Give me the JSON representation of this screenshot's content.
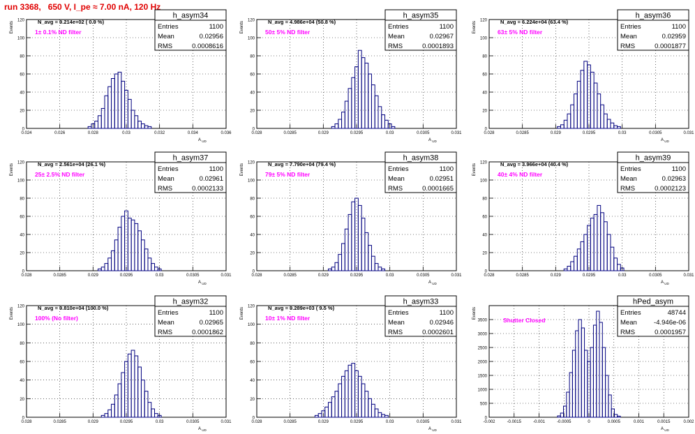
{
  "run_title": "run 3368,   650 V, I_pe ≈ 7.00 nA, 120 Hz",
  "colors": {
    "histogram": "#00007f",
    "annotation": "#ff00ff",
    "title": "#e00000",
    "grid": "#000000"
  },
  "stats_labels": {
    "entries": "Entries",
    "mean": "Mean",
    "rms": "RMS"
  },
  "chart_data": [
    {
      "type": "bar",
      "name": "h_asym34",
      "navg": "N_avg = 9.214e+02 ( 0.9 %)",
      "filter": "1± 0.1% ND filter",
      "stats": {
        "entries": "1100",
        "mean": "0.02956",
        "rms": "0.0008616"
      },
      "xlabel": "A_UD",
      "ylabel": "Events",
      "xlim": [
        0.024,
        0.036
      ],
      "ylim": [
        0,
        120
      ],
      "xticks": [
        0.024,
        0.026,
        0.028,
        0.03,
        0.032,
        0.034,
        0.036
      ],
      "xtick_labels": [
        "0.024",
        "0.026",
        "0.028",
        "0.03",
        "0.032",
        "0.034",
        "0.036"
      ],
      "yticks": [
        0,
        20,
        40,
        60,
        80,
        100,
        120
      ],
      "ytick_labels": [
        "0",
        "20",
        "40",
        "60",
        "80",
        "100",
        "120"
      ],
      "grid": true,
      "bins": [
        [
          0.0278,
          2
        ],
        [
          0.028,
          5
        ],
        [
          0.0282,
          8
        ],
        [
          0.0284,
          14
        ],
        [
          0.0286,
          22
        ],
        [
          0.0288,
          36
        ],
        [
          0.029,
          46
        ],
        [
          0.0292,
          55
        ],
        [
          0.0294,
          60
        ],
        [
          0.0296,
          62
        ],
        [
          0.0298,
          52
        ],
        [
          0.03,
          42
        ],
        [
          0.0302,
          32
        ],
        [
          0.0304,
          20
        ],
        [
          0.0306,
          14
        ],
        [
          0.0308,
          8
        ],
        [
          0.031,
          5
        ],
        [
          0.0312,
          3
        ],
        [
          0.0314,
          2
        ]
      ]
    },
    {
      "type": "bar",
      "name": "h_asym35",
      "navg": "N_avg = 4.986e+04 (50.8 %)",
      "filter": "50± 5% ND filter",
      "stats": {
        "entries": "1100",
        "mean": "0.02967",
        "rms": "0.0001893"
      },
      "xlabel": "A_UD",
      "ylabel": "Events",
      "xlim": [
        0.028,
        0.031
      ],
      "ylim": [
        0,
        120
      ],
      "xticks": [
        0.028,
        0.0285,
        0.029,
        0.0295,
        0.03,
        0.0305,
        0.031
      ],
      "xtick_labels": [
        "0.028",
        "0.0285",
        "0.029",
        "0.0295",
        "0.03",
        "0.0305",
        "0.031"
      ],
      "yticks": [
        0,
        20,
        40,
        60,
        80,
        100,
        120
      ],
      "ytick_labels": [
        "0",
        "20",
        "40",
        "60",
        "80",
        "100",
        "120"
      ],
      "grid": true,
      "bins": [
        [
          0.02915,
          2
        ],
        [
          0.0292,
          5
        ],
        [
          0.02925,
          10
        ],
        [
          0.0293,
          18
        ],
        [
          0.02935,
          30
        ],
        [
          0.0294,
          44
        ],
        [
          0.02945,
          56
        ],
        [
          0.0295,
          68
        ],
        [
          0.02955,
          86
        ],
        [
          0.0296,
          78
        ],
        [
          0.02965,
          72
        ],
        [
          0.0297,
          60
        ],
        [
          0.02975,
          48
        ],
        [
          0.0298,
          36
        ],
        [
          0.02985,
          24
        ],
        [
          0.0299,
          15
        ],
        [
          0.02995,
          9
        ],
        [
          0.03,
          5
        ],
        [
          0.03005,
          2
        ]
      ]
    },
    {
      "type": "bar",
      "name": "h_asym36",
      "navg": "N_avg = 6.224e+04 (63.4 %)",
      "filter": "63± 5% ND filter",
      "stats": {
        "entries": "1100",
        "mean": "0.02959",
        "rms": "0.0001877"
      },
      "xlabel": "A_UD",
      "ylabel": "Events",
      "xlim": [
        0.028,
        0.031
      ],
      "ylim": [
        0,
        120
      ],
      "xticks": [
        0.028,
        0.0285,
        0.029,
        0.0295,
        0.03,
        0.0305,
        0.031
      ],
      "xtick_labels": [
        "0.028",
        "0.0285",
        "0.029",
        "0.0295",
        "0.03",
        "0.0305",
        "0.031"
      ],
      "yticks": [
        0,
        20,
        40,
        60,
        80,
        100,
        120
      ],
      "ytick_labels": [
        "0",
        "20",
        "40",
        "60",
        "80",
        "100",
        "120"
      ],
      "grid": true,
      "bins": [
        [
          0.02905,
          2
        ],
        [
          0.0291,
          4
        ],
        [
          0.02915,
          9
        ],
        [
          0.0292,
          16
        ],
        [
          0.02925,
          26
        ],
        [
          0.0293,
          38
        ],
        [
          0.02935,
          52
        ],
        [
          0.0294,
          64
        ],
        [
          0.02945,
          74
        ],
        [
          0.0295,
          70
        ],
        [
          0.02955,
          62
        ],
        [
          0.0296,
          50
        ],
        [
          0.02965,
          38
        ],
        [
          0.0297,
          26
        ],
        [
          0.02975,
          16
        ],
        [
          0.0298,
          10
        ],
        [
          0.02985,
          6
        ],
        [
          0.0299,
          3
        ],
        [
          0.02995,
          2
        ]
      ]
    },
    {
      "type": "bar",
      "name": "h_asym37",
      "navg": "N_avg = 2.561e+04 (26.1 %)",
      "filter": "25± 2.5% ND filter",
      "stats": {
        "entries": "1100",
        "mean": "0.02961",
        "rms": "0.0002133"
      },
      "xlabel": "A_UD",
      "ylabel": "Events",
      "xlim": [
        0.028,
        0.031
      ],
      "ylim": [
        0,
        120
      ],
      "xticks": [
        0.028,
        0.0285,
        0.029,
        0.0295,
        0.03,
        0.0305,
        0.031
      ],
      "xtick_labels": [
        "0.028",
        "0.0285",
        "0.029",
        "0.0295",
        "0.03",
        "0.0305",
        "0.031"
      ],
      "yticks": [
        0,
        20,
        40,
        60,
        80,
        100,
        120
      ],
      "ytick_labels": [
        "0",
        "20",
        "40",
        "60",
        "80",
        "100",
        "120"
      ],
      "grid": true,
      "bins": [
        [
          0.0291,
          2
        ],
        [
          0.02915,
          4
        ],
        [
          0.0292,
          8
        ],
        [
          0.02925,
          14
        ],
        [
          0.0293,
          22
        ],
        [
          0.02935,
          34
        ],
        [
          0.0294,
          48
        ],
        [
          0.02945,
          60
        ],
        [
          0.0295,
          66
        ],
        [
          0.02955,
          58
        ],
        [
          0.0296,
          56
        ],
        [
          0.02965,
          52
        ],
        [
          0.0297,
          44
        ],
        [
          0.02975,
          34
        ],
        [
          0.0298,
          24
        ],
        [
          0.02985,
          14
        ],
        [
          0.0299,
          8
        ],
        [
          0.02995,
          4
        ],
        [
          0.03,
          2
        ]
      ]
    },
    {
      "type": "bar",
      "name": "h_asym38",
      "navg": "N_avg = 7.790e+04 (79.4 %)",
      "filter": "79± 5% ND filter",
      "stats": {
        "entries": "1100",
        "mean": "0.02951",
        "rms": "0.0001665"
      },
      "xlabel": "A_UD",
      "ylabel": "Events",
      "xlim": [
        0.028,
        0.031
      ],
      "ylim": [
        0,
        120
      ],
      "xticks": [
        0.028,
        0.0285,
        0.029,
        0.0295,
        0.03,
        0.0305,
        0.031
      ],
      "xtick_labels": [
        "0.028",
        "0.0285",
        "0.029",
        "0.0295",
        "0.03",
        "0.0305",
        "0.031"
      ],
      "yticks": [
        0,
        20,
        40,
        60,
        80,
        100,
        120
      ],
      "ytick_labels": [
        "0",
        "20",
        "40",
        "60",
        "80",
        "100",
        "120"
      ],
      "grid": true,
      "bins": [
        [
          0.0291,
          2
        ],
        [
          0.02915,
          4
        ],
        [
          0.0292,
          9
        ],
        [
          0.02925,
          18
        ],
        [
          0.0293,
          30
        ],
        [
          0.02935,
          46
        ],
        [
          0.0294,
          62
        ],
        [
          0.02945,
          76
        ],
        [
          0.0295,
          80
        ],
        [
          0.02955,
          72
        ],
        [
          0.0296,
          58
        ],
        [
          0.02965,
          42
        ],
        [
          0.0297,
          28
        ],
        [
          0.02975,
          16
        ],
        [
          0.0298,
          8
        ],
        [
          0.02985,
          4
        ],
        [
          0.0299,
          2
        ]
      ]
    },
    {
      "type": "bar",
      "name": "h_asym39",
      "navg": "N_avg = 3.966e+04 (40.4 %)",
      "filter": "40± 4% ND filter",
      "stats": {
        "entries": "1100",
        "mean": "0.02963",
        "rms": "0.0002123"
      },
      "xlabel": "A_UD",
      "ylabel": "Events",
      "xlim": [
        0.028,
        0.031
      ],
      "ylim": [
        0,
        120
      ],
      "xticks": [
        0.028,
        0.0285,
        0.029,
        0.0295,
        0.03,
        0.0305,
        0.031
      ],
      "xtick_labels": [
        "0.028",
        "0.0285",
        "0.029",
        "0.0295",
        "0.03",
        "0.0305",
        "0.031"
      ],
      "yticks": [
        0,
        20,
        40,
        60,
        80,
        100,
        120
      ],
      "ytick_labels": [
        "0",
        "20",
        "40",
        "60",
        "80",
        "100",
        "120"
      ],
      "grid": true,
      "bins": [
        [
          0.02915,
          2
        ],
        [
          0.0292,
          5
        ],
        [
          0.02925,
          10
        ],
        [
          0.0293,
          16
        ],
        [
          0.02935,
          24
        ],
        [
          0.0294,
          32
        ],
        [
          0.02945,
          40
        ],
        [
          0.0295,
          50
        ],
        [
          0.02955,
          58
        ],
        [
          0.0296,
          62
        ],
        [
          0.02965,
          72
        ],
        [
          0.0297,
          64
        ],
        [
          0.02975,
          54
        ],
        [
          0.0298,
          40
        ],
        [
          0.02985,
          26
        ],
        [
          0.0299,
          14
        ],
        [
          0.02995,
          7
        ],
        [
          0.03,
          3
        ]
      ]
    },
    {
      "type": "bar",
      "name": "h_asym32",
      "navg": "N_avg = 9.810e+04 (100.0 %)",
      "filter": "100% (No filter)",
      "stats": {
        "entries": "1100",
        "mean": "0.02965",
        "rms": "0.0001862"
      },
      "xlabel": "A_UD",
      "ylabel": "Events",
      "xlim": [
        0.028,
        0.031
      ],
      "ylim": [
        0,
        120
      ],
      "xticks": [
        0.028,
        0.0285,
        0.029,
        0.0295,
        0.03,
        0.0305,
        0.031
      ],
      "xtick_labels": [
        "0.028",
        "0.0285",
        "0.029",
        "0.0295",
        "0.03",
        "0.0305",
        "0.031"
      ],
      "yticks": [
        0,
        20,
        40,
        60,
        80,
        100,
        120
      ],
      "ytick_labels": [
        "0",
        "20",
        "40",
        "60",
        "80",
        "100",
        "120"
      ],
      "grid": true,
      "bins": [
        [
          0.02915,
          2
        ],
        [
          0.0292,
          4
        ],
        [
          0.02925,
          8
        ],
        [
          0.0293,
          14
        ],
        [
          0.02935,
          24
        ],
        [
          0.0294,
          36
        ],
        [
          0.02945,
          48
        ],
        [
          0.0295,
          60
        ],
        [
          0.02955,
          68
        ],
        [
          0.0296,
          72
        ],
        [
          0.02965,
          66
        ],
        [
          0.0297,
          54
        ],
        [
          0.02975,
          40
        ],
        [
          0.0298,
          28
        ],
        [
          0.02985,
          16
        ],
        [
          0.0299,
          9
        ],
        [
          0.02995,
          4
        ],
        [
          0.03,
          2
        ]
      ]
    },
    {
      "type": "bar",
      "name": "h_asym33",
      "navg": "N_avg = 9.289e+03 ( 9.5 %)",
      "filter": "10± 1% ND filter",
      "stats": {
        "entries": "1100",
        "mean": "0.02946",
        "rms": "0.0002601"
      },
      "xlabel": "A_UD",
      "ylabel": "Events",
      "xlim": [
        0.028,
        0.031
      ],
      "ylim": [
        0,
        120
      ],
      "xticks": [
        0.028,
        0.0285,
        0.029,
        0.0295,
        0.03,
        0.0305,
        0.031
      ],
      "xtick_labels": [
        "0.028",
        "0.0285",
        "0.029",
        "0.0295",
        "0.03",
        "0.0305",
        "0.031"
      ],
      "yticks": [
        0,
        20,
        40,
        60,
        80,
        100,
        120
      ],
      "ytick_labels": [
        "0",
        "20",
        "40",
        "60",
        "80",
        "100",
        "120"
      ],
      "grid": true,
      "bins": [
        [
          0.0289,
          2
        ],
        [
          0.02895,
          4
        ],
        [
          0.029,
          7
        ],
        [
          0.02905,
          11
        ],
        [
          0.0291,
          16
        ],
        [
          0.02915,
          22
        ],
        [
          0.0292,
          28
        ],
        [
          0.02925,
          36
        ],
        [
          0.0293,
          44
        ],
        [
          0.02935,
          50
        ],
        [
          0.0294,
          56
        ],
        [
          0.02945,
          58
        ],
        [
          0.0295,
          50
        ],
        [
          0.02955,
          44
        ],
        [
          0.0296,
          36
        ],
        [
          0.02965,
          28
        ],
        [
          0.0297,
          20
        ],
        [
          0.02975,
          14
        ],
        [
          0.0298,
          9
        ],
        [
          0.02985,
          5
        ],
        [
          0.0299,
          3
        ],
        [
          0.02995,
          2
        ]
      ]
    },
    {
      "type": "bar",
      "name": "hPed_asym",
      "navg": "",
      "filter": "Shutter Closed",
      "stats": {
        "entries": "48744",
        "mean": "-4.946e-06",
        "rms": "0.0001957"
      },
      "xlabel": "A_UD",
      "ylabel": "Events",
      "xlim": [
        -0.002,
        0.002
      ],
      "ylim": [
        0,
        4000
      ],
      "xticks": [
        -0.002,
        -0.0015,
        -0.001,
        -0.0005,
        0,
        0.0005,
        0.001,
        0.0015,
        0.002
      ],
      "xtick_labels": [
        "-0.002",
        "-0.0015",
        "-0.001",
        "-0.0005",
        "0",
        "0.0005",
        "0.001",
        "0.0015",
        "0.002"
      ],
      "yticks": [
        0,
        500,
        1000,
        1500,
        2000,
        2500,
        3000,
        3500
      ],
      "ytick_labels": [
        "0",
        "500",
        "1000",
        "1500",
        "2000",
        "2500",
        "3000",
        "3500"
      ],
      "grid": true,
      "bins": [
        [
          -0.0006,
          50
        ],
        [
          -0.00054,
          150
        ],
        [
          -0.00048,
          400
        ],
        [
          -0.00042,
          900
        ],
        [
          -0.00036,
          1600
        ],
        [
          -0.0003,
          2400
        ],
        [
          -0.00024,
          3100
        ],
        [
          -0.00018,
          3500
        ],
        [
          -0.00012,
          3200
        ],
        [
          -6e-05,
          2400
        ],
        [
          0.0,
          2000
        ],
        [
          6e-05,
          2500
        ],
        [
          0.00012,
          3300
        ],
        [
          0.00018,
          3800
        ],
        [
          0.00024,
          3400
        ],
        [
          0.0003,
          2500
        ],
        [
          0.00036,
          1500
        ],
        [
          0.00042,
          800
        ],
        [
          0.00048,
          300
        ],
        [
          0.00054,
          100
        ],
        [
          0.0006,
          40
        ]
      ]
    }
  ]
}
